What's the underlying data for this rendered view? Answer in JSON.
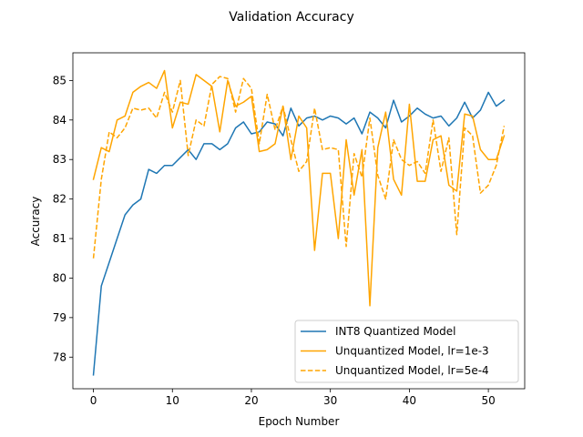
{
  "chart_data": {
    "type": "line",
    "title": "Validation Accuracy",
    "xlabel": "Epoch Number",
    "ylabel": "Accuracy",
    "xlim": [
      -2.6,
      54.6
    ],
    "ylim": [
      77.2,
      85.7
    ],
    "xticks": [
      0,
      10,
      20,
      30,
      40,
      50
    ],
    "yticks": [
      78,
      79,
      80,
      81,
      82,
      83,
      84,
      85
    ],
    "grid": false,
    "legend_position": "lower-right",
    "series": [
      {
        "name": "INT8 Quantized Model",
        "color": "#1f77b4",
        "linestyle": "solid",
        "x": [
          0,
          1,
          2,
          3,
          4,
          5,
          6,
          7,
          8,
          9,
          10,
          11,
          12,
          13,
          14,
          15,
          16,
          17,
          18,
          19,
          20,
          21,
          22,
          23,
          24,
          25,
          26,
          27,
          28,
          29,
          30,
          31,
          32,
          33,
          34,
          35,
          36,
          37,
          38,
          39,
          40,
          41,
          42,
          43,
          44,
          45,
          46,
          47,
          48,
          49,
          50,
          51,
          52
        ],
        "values": [
          77.55,
          79.8,
          80.4,
          81.0,
          81.6,
          81.85,
          82.0,
          82.75,
          82.65,
          82.85,
          82.85,
          83.05,
          83.25,
          83.0,
          83.4,
          83.4,
          83.25,
          83.4,
          83.8,
          83.95,
          83.65,
          83.7,
          83.95,
          83.9,
          83.6,
          84.3,
          83.85,
          84.05,
          84.1,
          84.0,
          84.1,
          84.05,
          83.9,
          84.05,
          83.65,
          84.2,
          84.05,
          83.8,
          84.5,
          83.95,
          84.1,
          84.3,
          84.15,
          84.05,
          84.1,
          83.85,
          84.05,
          84.45,
          84.05,
          84.25,
          84.7,
          84.35,
          84.5
        ]
      },
      {
        "name": "Unquantized Model, lr=1e-3",
        "color": "#ffa500",
        "linestyle": "solid",
        "x": [
          0,
          1,
          2,
          3,
          4,
          5,
          6,
          7,
          8,
          9,
          10,
          11,
          12,
          13,
          14,
          15,
          16,
          17,
          18,
          19,
          20,
          21,
          22,
          23,
          24,
          25,
          26,
          27,
          28,
          29,
          30,
          31,
          32,
          33,
          34,
          35,
          36,
          37,
          38,
          39,
          40,
          41,
          42,
          43,
          44,
          45,
          46,
          47,
          48,
          49,
          50,
          51,
          52
        ],
        "values": [
          82.5,
          83.3,
          83.2,
          84.0,
          84.1,
          84.7,
          84.85,
          84.95,
          84.8,
          85.25,
          83.8,
          84.45,
          84.4,
          85.15,
          85.0,
          84.85,
          83.7,
          85.0,
          84.35,
          84.45,
          84.6,
          83.2,
          83.25,
          83.4,
          84.35,
          83.0,
          84.1,
          83.8,
          80.7,
          82.65,
          82.65,
          81.0,
          83.5,
          82.1,
          83.25,
          79.3,
          83.3,
          84.2,
          82.5,
          82.1,
          84.4,
          82.45,
          82.45,
          83.5,
          83.6,
          82.35,
          82.2,
          84.15,
          84.1,
          83.25,
          83.0,
          83.0,
          83.6
        ]
      },
      {
        "name": "Unquantized Model, lr=5e-4",
        "color": "#ffa500",
        "linestyle": "dashed",
        "x": [
          0,
          1,
          2,
          3,
          4,
          5,
          6,
          7,
          8,
          9,
          10,
          11,
          12,
          13,
          14,
          15,
          16,
          17,
          18,
          19,
          20,
          21,
          22,
          23,
          24,
          25,
          26,
          27,
          28,
          29,
          30,
          31,
          32,
          33,
          34,
          35,
          36,
          37,
          38,
          39,
          40,
          41,
          42,
          43,
          44,
          45,
          46,
          47,
          48,
          49,
          50,
          51,
          52
        ],
        "values": [
          80.5,
          82.5,
          83.7,
          83.55,
          83.8,
          84.3,
          84.25,
          84.3,
          84.05,
          84.7,
          84.2,
          85.0,
          83.1,
          84.0,
          83.85,
          84.9,
          85.1,
          85.05,
          84.2,
          85.05,
          84.8,
          83.4,
          84.65,
          83.75,
          84.35,
          83.5,
          82.7,
          82.95,
          84.3,
          83.25,
          83.3,
          83.25,
          80.8,
          83.15,
          82.55,
          84.05,
          82.6,
          82.0,
          83.5,
          83.0,
          82.85,
          82.95,
          82.65,
          84.0,
          82.7,
          83.55,
          81.1,
          83.8,
          83.6,
          82.15,
          82.35,
          82.85,
          83.85
        ]
      }
    ]
  }
}
